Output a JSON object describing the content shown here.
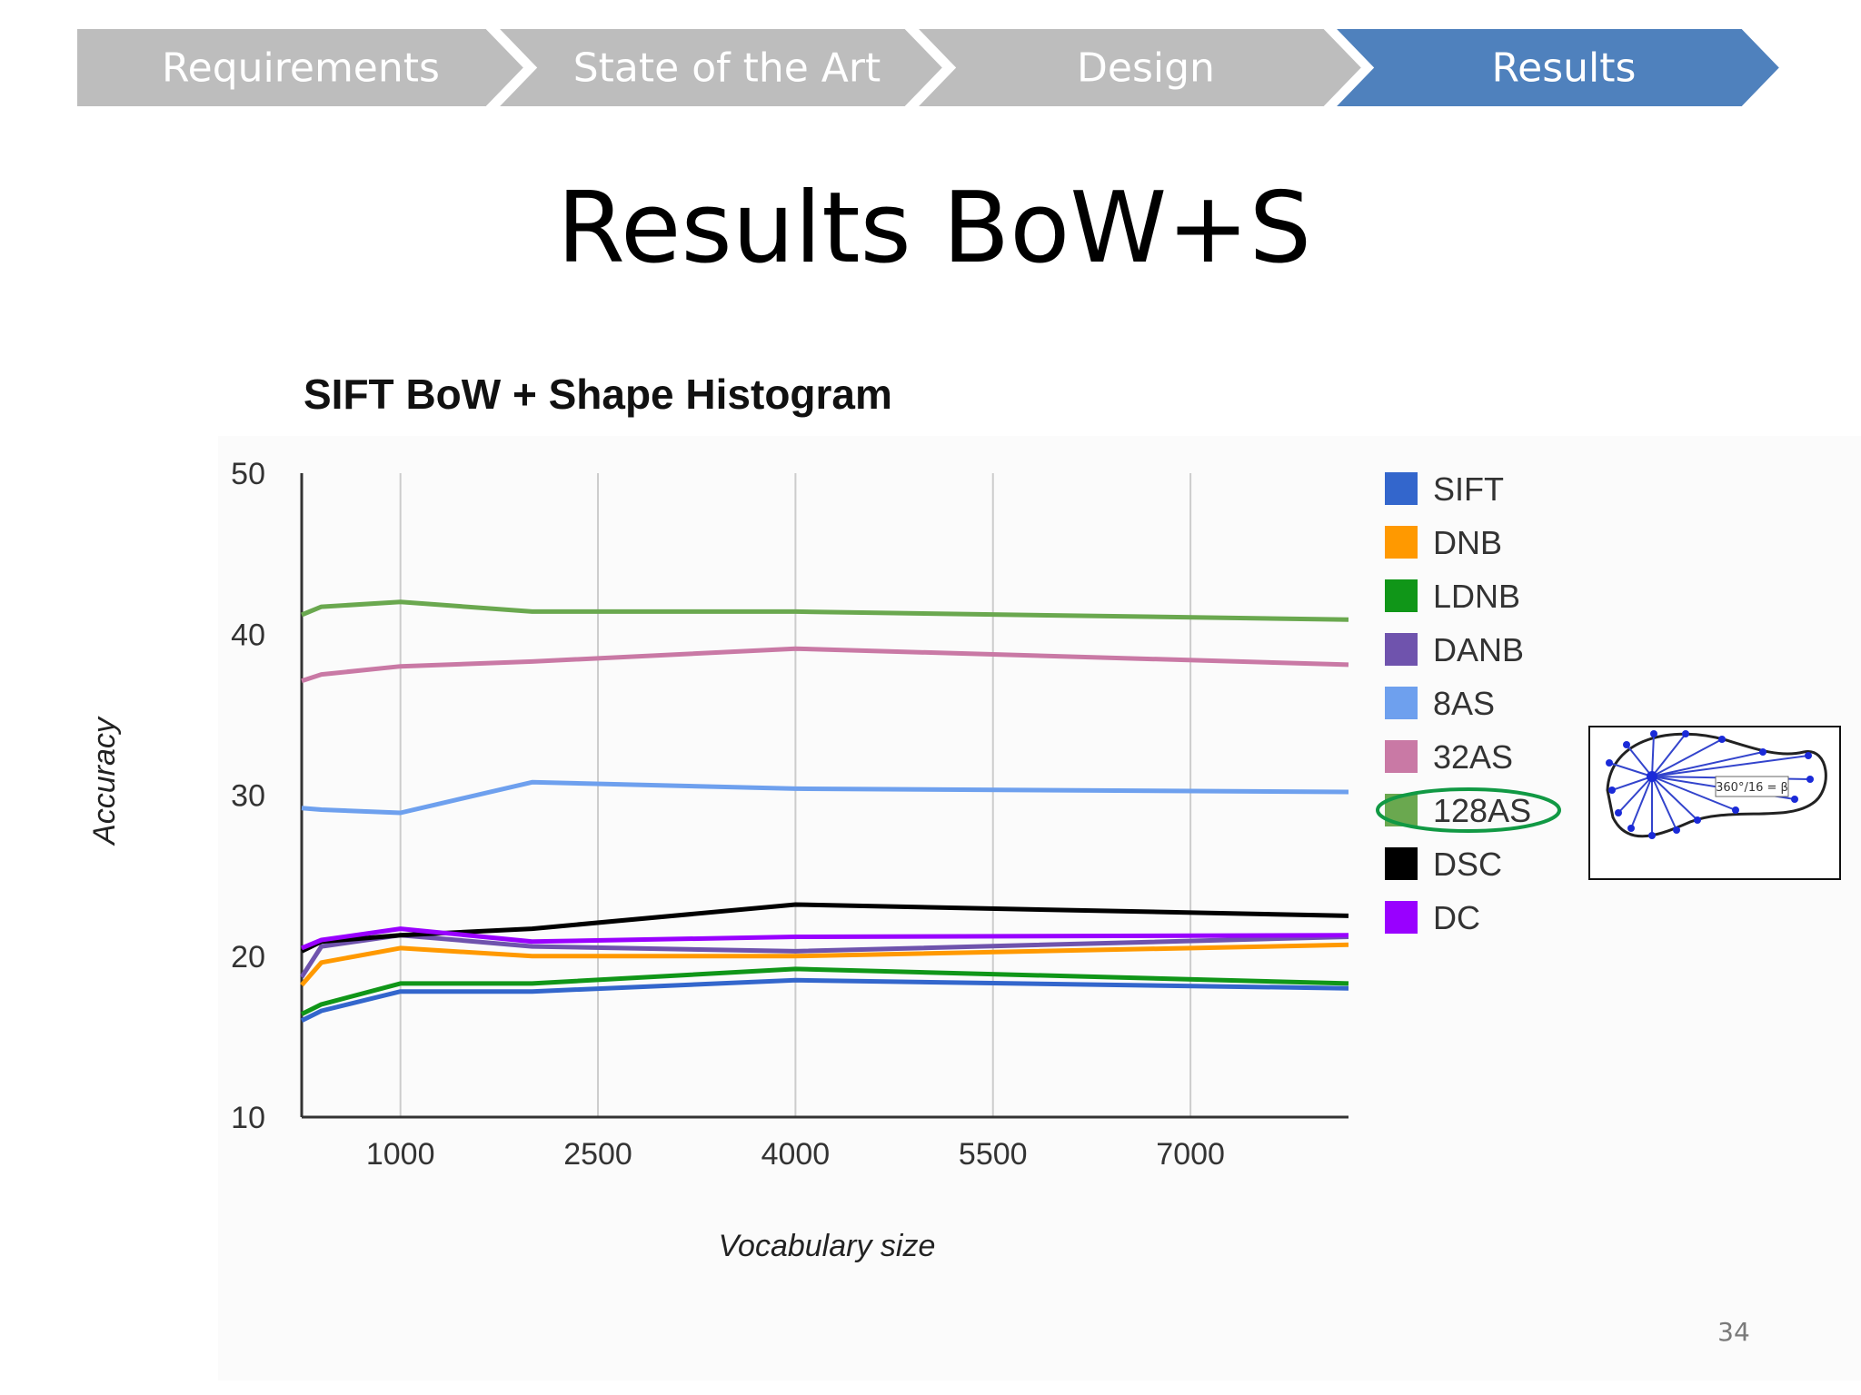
{
  "nav": {
    "steps": [
      {
        "label": "Requirements",
        "active": false
      },
      {
        "label": "State of the Art",
        "active": false
      },
      {
        "label": "Design",
        "active": false
      },
      {
        "label": "Results",
        "active": true
      }
    ],
    "inactive_color": "#bdbdbd",
    "active_color": "#4f81bd"
  },
  "slide": {
    "title": "Results BoW+S",
    "page_number": "34"
  },
  "chart_data": {
    "type": "line",
    "title": "SIFT BoW + Shape Histogram",
    "xlabel": "Vocabulary size",
    "ylabel": "Accuracy",
    "ylim": [
      10,
      50
    ],
    "yticks": [
      "10",
      "20",
      "30",
      "40",
      "50"
    ],
    "xticks": [
      "1000",
      "2500",
      "4000",
      "5500",
      "7000"
    ],
    "xtick_values": [
      1000,
      2500,
      4000,
      5500,
      7000
    ],
    "xlim": [
      250,
      8200
    ],
    "grid": "vertical",
    "legend_position": "right",
    "x": [
      250,
      400,
      1000,
      2000,
      4000,
      8200
    ],
    "series": [
      {
        "name": "SIFT",
        "color": "#3366cc",
        "values": [
          16.0,
          16.6,
          17.8,
          17.8,
          18.5,
          18.0
        ]
      },
      {
        "name": "DNB",
        "color": "#ff9900",
        "values": [
          18.2,
          19.6,
          20.5,
          20.0,
          20.0,
          20.7
        ]
      },
      {
        "name": "LDNB",
        "color": "#109618",
        "values": [
          16.4,
          17.0,
          18.3,
          18.3,
          19.2,
          18.3
        ]
      },
      {
        "name": "DANB",
        "color": "#6f53ad",
        "values": [
          18.7,
          20.6,
          21.3,
          20.6,
          20.3,
          21.2
        ]
      },
      {
        "name": "8AS",
        "color": "#6ea0ee",
        "values": [
          29.2,
          29.1,
          28.9,
          30.8,
          30.4,
          30.2
        ]
      },
      {
        "name": "32AS",
        "color": "#c979a5",
        "values": [
          37.1,
          37.5,
          38.0,
          38.3,
          39.1,
          38.1
        ]
      },
      {
        "name": "128AS",
        "color": "#6aa84f",
        "values": [
          41.2,
          41.7,
          42.0,
          41.4,
          41.4,
          40.9
        ]
      },
      {
        "name": "DSC",
        "color": "#000000",
        "values": [
          20.3,
          20.9,
          21.3,
          21.7,
          23.2,
          22.5
        ]
      },
      {
        "name": "DC",
        "color": "#9900ff",
        "values": [
          20.5,
          21.0,
          21.7,
          20.9,
          21.2,
          21.3
        ]
      }
    ],
    "highlighted_series": "128AS"
  },
  "inset": {
    "label": "360°/16 = β"
  }
}
